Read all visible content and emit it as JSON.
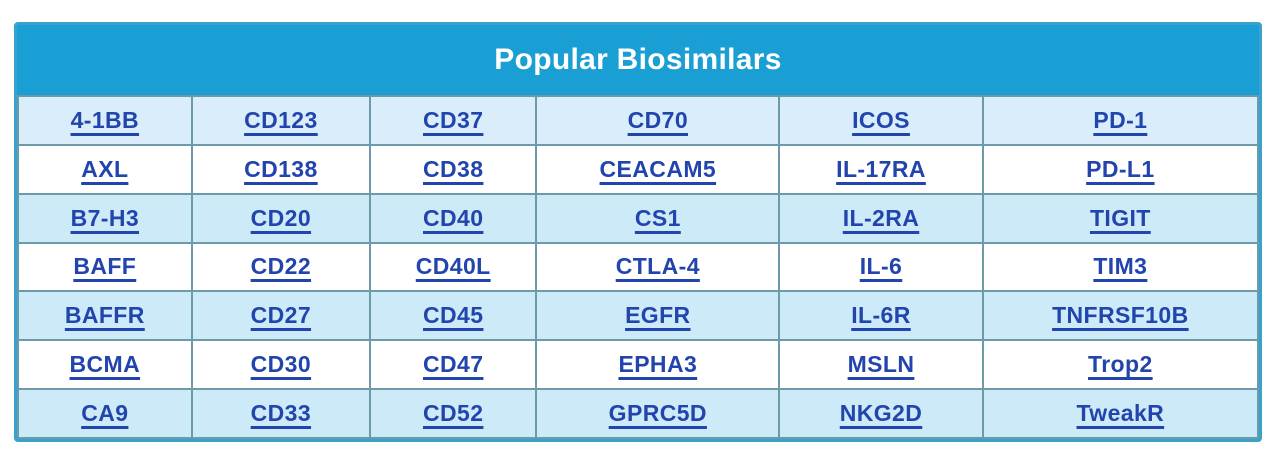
{
  "table": {
    "title": "Popular Biosimilars",
    "rows": [
      [
        "4-1BB",
        "CD123",
        "CD37",
        "CD70",
        "ICOS",
        "PD-1"
      ],
      [
        "AXL",
        "CD138",
        "CD38",
        "CEACAM5",
        "IL-17RA",
        "PD-L1"
      ],
      [
        "B7-H3",
        "CD20",
        "CD40",
        "CS1",
        "IL-2RA",
        "TIGIT"
      ],
      [
        "BAFF",
        "CD22",
        "CD40L",
        "CTLA-4",
        "IL-6",
        "TIM3"
      ],
      [
        "BAFFR",
        "CD27",
        "CD45",
        "EGFR",
        "IL-6R",
        "TNFRSF10B"
      ],
      [
        "BCMA",
        "CD30",
        "CD47",
        "EPHA3",
        "MSLN",
        "Trop2"
      ],
      [
        "CA9",
        "CD33",
        "CD52",
        "GPRC5D",
        "NKG2D",
        "TweakR"
      ]
    ],
    "column_widths_pct": [
      14.0,
      14.4,
      13.4,
      19.6,
      16.4,
      22.2
    ]
  },
  "colors": {
    "page_bg": "#ffffff",
    "header_bg": "#1a9fd5",
    "header_text": "#ffffff",
    "link": "#2244ad",
    "row_first_bg": "#d9eefa",
    "row_odd_bg": "#cdeaf8",
    "row_even_bg": "#ffffff",
    "grid_border": "#6d9aa8",
    "outer_border": "#35a3cc"
  }
}
